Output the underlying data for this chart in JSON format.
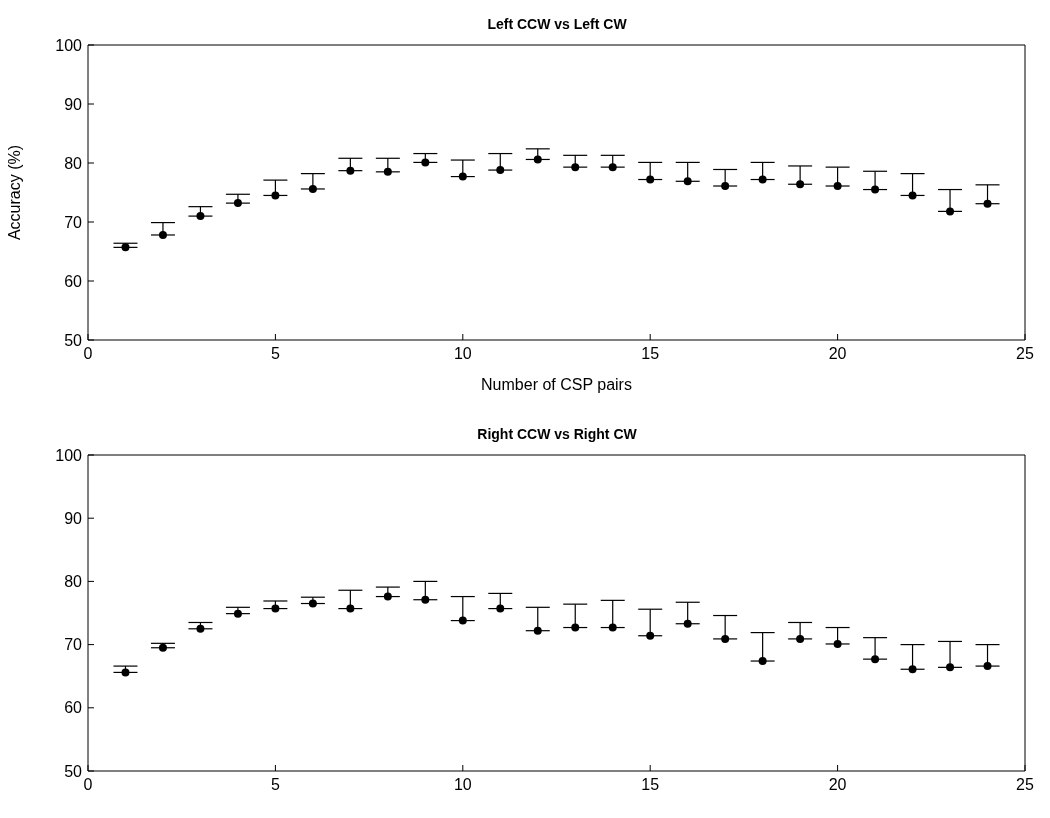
{
  "chart_data": [
    {
      "type": "scatter",
      "title": "Left CCW vs Left CW",
      "xlabel": "Number of CSP pairs",
      "ylabel": "Accuracy (%)",
      "x": [
        1,
        2,
        3,
        4,
        5,
        6,
        7,
        8,
        9,
        10,
        11,
        12,
        13,
        14,
        15,
        16,
        17,
        18,
        19,
        20,
        21,
        22,
        23,
        24
      ],
      "series": [
        {
          "color": "#000000",
          "values": [
            65.7,
            67.8,
            71.0,
            73.2,
            74.5,
            75.6,
            78.7,
            78.5,
            80.1,
            77.7,
            78.8,
            80.6,
            79.3,
            79.3,
            77.2,
            76.9,
            76.1,
            77.2,
            76.4,
            76.1,
            75.5,
            74.5,
            71.8,
            73.1
          ],
          "errors": [
            [
              65.7,
              66.4
            ],
            [
              67.8,
              69.9
            ],
            [
              71.0,
              72.6
            ],
            [
              73.2,
              74.7
            ],
            [
              74.5,
              77.1
            ],
            [
              75.6,
              78.2
            ],
            [
              78.7,
              80.8
            ],
            [
              78.5,
              80.8
            ],
            [
              80.1,
              81.6
            ],
            [
              77.7,
              80.5
            ],
            [
              78.8,
              81.6
            ],
            [
              80.6,
              82.4
            ],
            [
              79.3,
              81.3
            ],
            [
              79.3,
              81.3
            ],
            [
              77.2,
              80.1
            ],
            [
              76.9,
              80.1
            ],
            [
              76.1,
              78.9
            ],
            [
              77.2,
              80.1
            ],
            [
              76.4,
              79.5
            ],
            [
              76.1,
              79.3
            ],
            [
              75.5,
              78.6
            ],
            [
              74.5,
              78.2
            ],
            [
              71.8,
              75.5
            ],
            [
              73.1,
              76.3
            ]
          ]
        }
      ],
      "xlim": [
        0,
        25
      ],
      "xticks": [
        0,
        5,
        10,
        15,
        20,
        25
      ],
      "ylim": [
        50,
        100
      ],
      "yticks": [
        50,
        60,
        70,
        80,
        90,
        100
      ],
      "grid": false,
      "marker": "circle"
    },
    {
      "type": "scatter",
      "title": "Right CCW vs Right CW",
      "x": [
        1,
        2,
        3,
        4,
        5,
        6,
        7,
        8,
        9,
        10,
        11,
        12,
        13,
        14,
        15,
        16,
        17,
        18,
        19,
        20,
        21,
        22,
        23,
        24
      ],
      "series": [
        {
          "color": "#000000",
          "values": [
            65.6,
            69.5,
            72.5,
            74.9,
            75.7,
            76.5,
            75.7,
            77.6,
            77.1,
            73.8,
            75.7,
            72.2,
            72.7,
            72.7,
            71.4,
            73.3,
            70.9,
            67.4,
            70.9,
            70.1,
            67.7,
            66.1,
            66.4,
            66.6
          ],
          "errors": [
            [
              65.6,
              66.6
            ],
            [
              69.5,
              70.2
            ],
            [
              72.5,
              73.5
            ],
            [
              74.9,
              75.9
            ],
            [
              75.7,
              76.9
            ],
            [
              76.5,
              77.5
            ],
            [
              75.7,
              78.6
            ],
            [
              77.6,
              79.1
            ],
            [
              77.1,
              80.0
            ],
            [
              73.8,
              77.6
            ],
            [
              75.7,
              78.1
            ],
            [
              72.2,
              75.9
            ],
            [
              72.7,
              76.4
            ],
            [
              72.7,
              77.0
            ],
            [
              71.4,
              75.6
            ],
            [
              73.3,
              76.7
            ],
            [
              70.9,
              74.6
            ],
            [
              67.4,
              71.9
            ],
            [
              70.9,
              73.5
            ],
            [
              70.1,
              72.7
            ],
            [
              67.7,
              71.1
            ],
            [
              66.1,
              70.0
            ],
            [
              66.4,
              70.5
            ],
            [
              66.6,
              70.0
            ]
          ]
        }
      ],
      "xlim": [
        0,
        25
      ],
      "xticks": [
        0,
        5,
        10,
        15,
        20,
        25
      ],
      "ylim": [
        50,
        100
      ],
      "yticks": [
        50,
        60,
        70,
        80,
        90,
        100
      ],
      "grid": false,
      "marker": "circle"
    }
  ]
}
